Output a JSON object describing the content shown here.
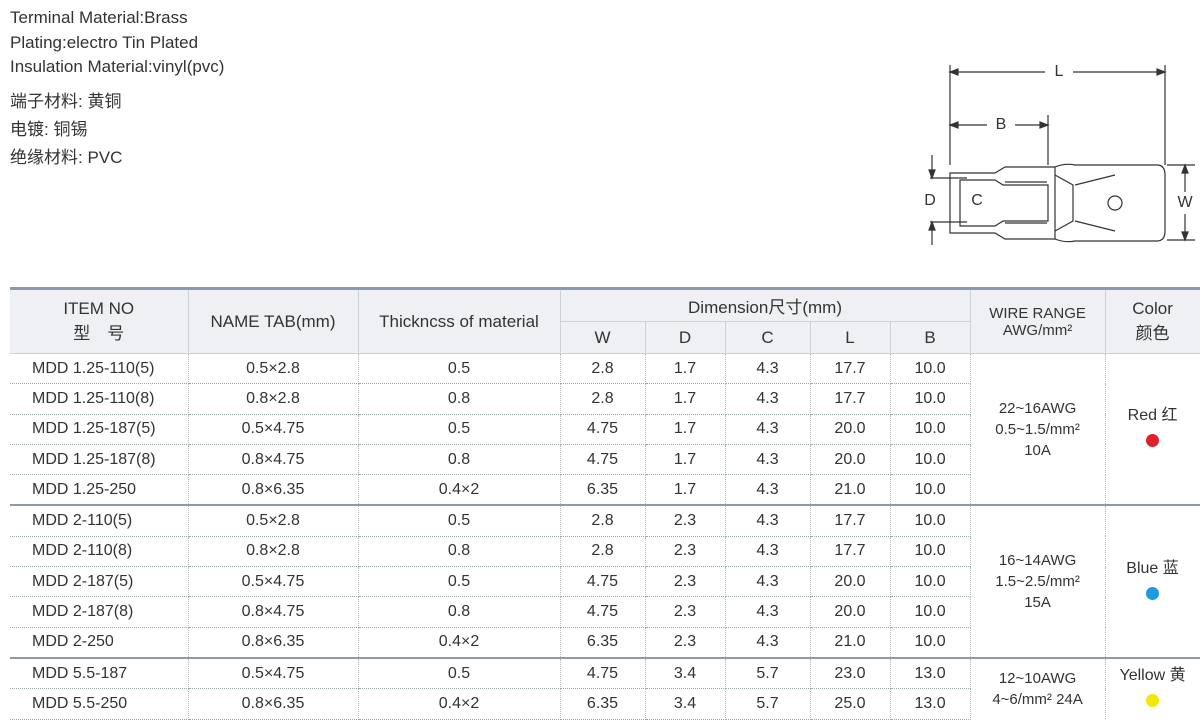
{
  "specs": [
    "Terminal Material:Brass",
    "Plating:electro Tin Plated",
    "Insulation Material:vinyl(pvc)",
    "端子材料: 黄铜",
    "电镀: 铜锡",
    "绝缘材料: PVC"
  ],
  "diagram": {
    "L": "L",
    "B": "B",
    "D": "D",
    "C": "C",
    "W": "W"
  },
  "table": {
    "header": {
      "item_no": "ITEM NO",
      "item_no_cn": "型　号",
      "name_tab": "NAME TAB(mm)",
      "thickness": "Thickncss of material",
      "dimension": "Dimension尺寸(mm)",
      "dims": [
        "W",
        "D",
        "C",
        "L",
        "B"
      ],
      "wire_range": [
        "WIRE RANGE",
        "AWG/mm²"
      ],
      "color": [
        "Color",
        "颜色"
      ]
    },
    "groups": [
      {
        "rows": [
          [
            "MDD 1.25-110(5)",
            "0.5×2.8",
            "0.5",
            "2.8",
            "1.7",
            "4.3",
            "17.7",
            "10.0"
          ],
          [
            "MDD 1.25-110(8)",
            "0.8×2.8",
            "0.8",
            "2.8",
            "1.7",
            "4.3",
            "17.7",
            "10.0"
          ],
          [
            "MDD 1.25-187(5)",
            "0.5×4.75",
            "0.5",
            "4.75",
            "1.7",
            "4.3",
            "20.0",
            "10.0"
          ],
          [
            "MDD 1.25-187(8)",
            "0.8×4.75",
            "0.8",
            "4.75",
            "1.7",
            "4.3",
            "20.0",
            "10.0"
          ],
          [
            "MDD 1.25-250",
            "0.8×6.35",
            "0.4×2",
            "6.35",
            "1.7",
            "4.3",
            "21.0",
            "10.0"
          ]
        ],
        "wire": [
          "22~16AWG",
          "0.5~1.5/mm²",
          "10A"
        ],
        "color": "Red 红",
        "dot_color": "#e0202a"
      },
      {
        "rows": [
          [
            "MDD 2-110(5)",
            "0.5×2.8",
            "0.5",
            "2.8",
            "2.3",
            "4.3",
            "17.7",
            "10.0"
          ],
          [
            "MDD 2-110(8)",
            "0.8×2.8",
            "0.8",
            "2.8",
            "2.3",
            "4.3",
            "17.7",
            "10.0"
          ],
          [
            "MDD 2-187(5)",
            "0.5×4.75",
            "0.5",
            "4.75",
            "2.3",
            "4.3",
            "20.0",
            "10.0"
          ],
          [
            "MDD 2-187(8)",
            "0.8×4.75",
            "0.8",
            "4.75",
            "2.3",
            "4.3",
            "20.0",
            "10.0"
          ],
          [
            "MDD 2-250",
            "0.8×6.35",
            "0.4×2",
            "6.35",
            "2.3",
            "4.3",
            "21.0",
            "10.0"
          ]
        ],
        "wire": [
          "16~14AWG",
          "1.5~2.5/mm²",
          "15A"
        ],
        "color": "Blue 蓝",
        "dot_color": "#1e9be0"
      },
      {
        "rows": [
          [
            "MDD 5.5-187",
            "0.5×4.75",
            "0.5",
            "4.75",
            "3.4",
            "5.7",
            "23.0",
            "13.0"
          ],
          [
            "MDD 5.5-250",
            "0.8×6.35",
            "0.4×2",
            "6.35",
            "3.4",
            "5.7",
            "25.0",
            "13.0"
          ]
        ],
        "wire": [
          "12~10AWG",
          "4~6/mm² 24A"
        ],
        "color": "Yellow 黄",
        "dot_color": "#f5e60a"
      }
    ]
  }
}
